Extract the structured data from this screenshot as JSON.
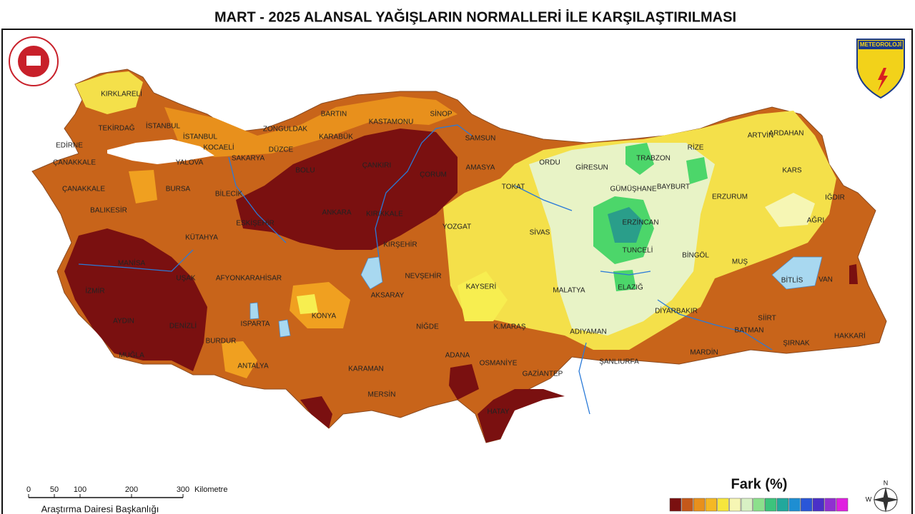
{
  "title": "MART - 2025 ALANSAL YAĞIŞLARIN NORMALLERİ İLE KARŞILAŞTIRILMASI",
  "logo_right": "METEOROLOJİ",
  "provinces": [
    "KIRKLARELİ",
    "TEKİRDAĞ",
    "İSTANBUL",
    "EDİRNE",
    "İSTANBUL",
    "KOCAELİ",
    "ZONGULDAK",
    "BARTIN",
    "KASTAMONU",
    "SİNOP",
    "KARABÜK",
    "SAMSUN",
    "DÜZCE",
    "SAKARYA",
    "ÇANAKKALE",
    "YALOVA",
    "BOLU",
    "ÇANKIRI",
    "ÇORUM",
    "AMASYA",
    "ORDU",
    "GİRESUN",
    "TRABZON",
    "RİZE",
    "ARTVİN",
    "ARDAHAN",
    "KARS",
    "ÇANAKKALE",
    "BURSA",
    "BİLECİK",
    "TOKAT",
    "GÜMÜŞHANE",
    "BAYBURT",
    "ERZURUM",
    "IĞDIR",
    "BALIKESİR",
    "ANKARA",
    "KIRIKKALE",
    "ESKİŞEHİR",
    "AĞRI",
    "ERZİNCAN",
    "KÜTAHYA",
    "YOZGAT",
    "SİVAS",
    "TUNCELİ",
    "BİNGÖL",
    "KIRŞEHİR",
    "MANİSA",
    "UŞAK",
    "AFYONKARAHİSAR",
    "NEVŞEHİR",
    "MUŞ",
    "BİTLİS",
    "VAN",
    "İZMİR",
    "KAYSERİ",
    "MALATYA",
    "ELAZIĞ",
    "AKSARAY",
    "KONYA",
    "DİYARBAKIR",
    "SİİRT",
    "AYDIN",
    "DENİZLİ",
    "ISPARTA",
    "NİĞDE",
    "K.MARAŞ",
    "ADIYAMAN",
    "BATMAN",
    "HAKKARİ",
    "ŞIRNAK",
    "BURDUR",
    "MUĞLA",
    "ADANA",
    "MARDİN",
    "OSMANİYE",
    "ANTALYA",
    "KARAMAN",
    "ŞANLIURFA",
    "GAZİANTEP",
    "MERSİN",
    "HATAY"
  ],
  "scale": {
    "ticks": [
      0,
      50,
      100,
      200,
      300
    ],
    "unit": "Kilometre"
  },
  "legend": {
    "title": "Fark (%)",
    "colors": [
      "#7a1010",
      "#c4581a",
      "#e8901c",
      "#f5b824",
      "#f6e63c",
      "#f6f6b4",
      "#d8f0c4",
      "#8ce08c",
      "#3cc47c",
      "#22a89c",
      "#1e8ed2",
      "#2a56d8",
      "#4a30c8",
      "#9030d0",
      "#e020e0"
    ]
  },
  "compass": {
    "labels": [
      "N",
      "W"
    ]
  },
  "footer": "Araştırma Dairesi Başkanlığı"
}
